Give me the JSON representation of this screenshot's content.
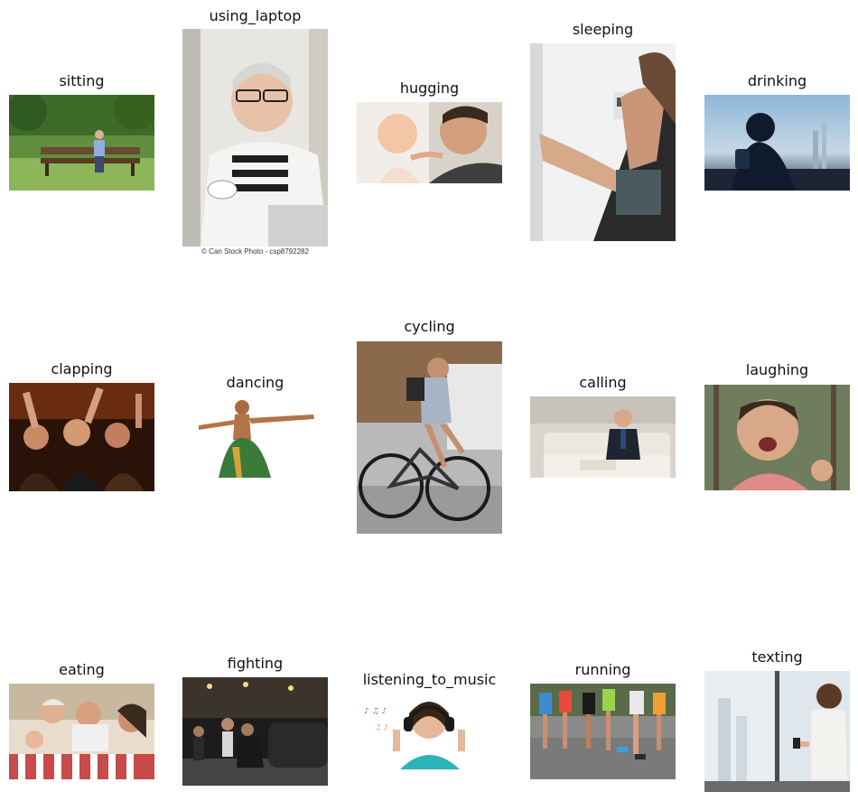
{
  "grid": {
    "rows": [
      [
        {
          "label": "sitting",
          "subject": "woman sitting on park bench"
        },
        {
          "label": "using_laptop",
          "subject": "elderly woman with cup and laptop",
          "footer": "© Can Stock Photo - csp8792282"
        },
        {
          "label": "hugging",
          "subject": "man and baby"
        },
        {
          "label": "sleeping",
          "subject": "woman reclining in office chair"
        },
        {
          "label": "drinking",
          "subject": "silhouette drinking against city skyline"
        }
      ],
      [
        {
          "label": "clapping",
          "subject": "crowd clapping at concert"
        },
        {
          "label": "dancing",
          "subject": "classical dancer with outstretched arms"
        },
        {
          "label": "cycling",
          "subject": "cyclist on road bike"
        },
        {
          "label": "calling",
          "subject": "man in suit on phone on sofa"
        },
        {
          "label": "laughing",
          "subject": "laughing baby"
        }
      ],
      [
        {
          "label": "eating",
          "subject": "family eating at table"
        },
        {
          "label": "fighting",
          "subject": "street fight at night"
        },
        {
          "label": "listening_to_music",
          "subject": "girl with headphones"
        },
        {
          "label": "running",
          "subject": "runners' legs on road"
        },
        {
          "label": "texting",
          "subject": "woman texting by window"
        }
      ]
    ]
  },
  "colors": {
    "background": "#ffffff",
    "label_text": "#111111"
  }
}
